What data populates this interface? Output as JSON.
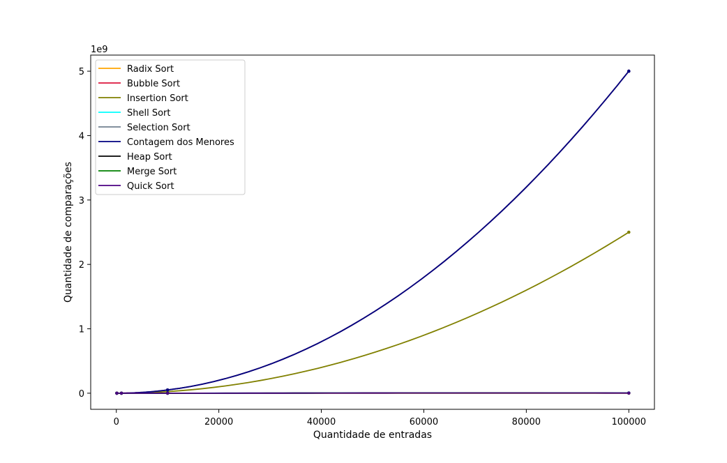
{
  "chart_data": {
    "type": "line",
    "title": "",
    "xlabel": "Quantidade de entradas",
    "ylabel": "Quantidade de comparações",
    "y_offset_label": "1e9",
    "xlim": [
      -5000,
      105000
    ],
    "ylim": [
      -0.25,
      5.25
    ],
    "y_scale": 1000000000,
    "x_ticks": [
      0,
      20000,
      40000,
      60000,
      80000,
      100000
    ],
    "x_tick_labels": [
      "0",
      "20000",
      "40000",
      "60000",
      "80000",
      "100000"
    ],
    "y_ticks": [
      0,
      1,
      2,
      3,
      4,
      5
    ],
    "y_tick_labels": [
      "0",
      "1",
      "2",
      "3",
      "4",
      "5"
    ],
    "legend_position": "top-left",
    "x": [
      100,
      1000,
      10000,
      100000
    ],
    "series": [
      {
        "name": "Radix Sort",
        "color": "#ffa500",
        "values": [
          500,
          5000,
          50000,
          500000
        ]
      },
      {
        "name": "Bubble Sort",
        "color": "#dc143c",
        "values": [
          4950,
          499500,
          49995000,
          4999950000
        ]
      },
      {
        "name": "Insertion Sort",
        "color": "#808000",
        "values": [
          2500,
          250000,
          25000000,
          2500000000
        ]
      },
      {
        "name": "Shell Sort",
        "color": "#00ffff",
        "values": [
          800,
          14000,
          250000,
          4000000
        ]
      },
      {
        "name": "Selection Sort",
        "color": "#708090",
        "values": [
          4950,
          499500,
          49995000,
          4999950000
        ]
      },
      {
        "name": "Contagem dos Menores",
        "color": "#000080",
        "values": [
          4950,
          499500,
          49995000,
          4999950000
        ]
      },
      {
        "name": "Heap Sort",
        "color": "#000000",
        "values": [
          1000,
          17000,
          240000,
          3000000
        ]
      },
      {
        "name": "Merge Sort",
        "color": "#008000",
        "values": [
          550,
          8700,
          120000,
          1500000
        ]
      },
      {
        "name": "Quick Sort",
        "color": "#4b0082",
        "values": [
          650,
          11000,
          160000,
          2000000
        ]
      }
    ]
  }
}
